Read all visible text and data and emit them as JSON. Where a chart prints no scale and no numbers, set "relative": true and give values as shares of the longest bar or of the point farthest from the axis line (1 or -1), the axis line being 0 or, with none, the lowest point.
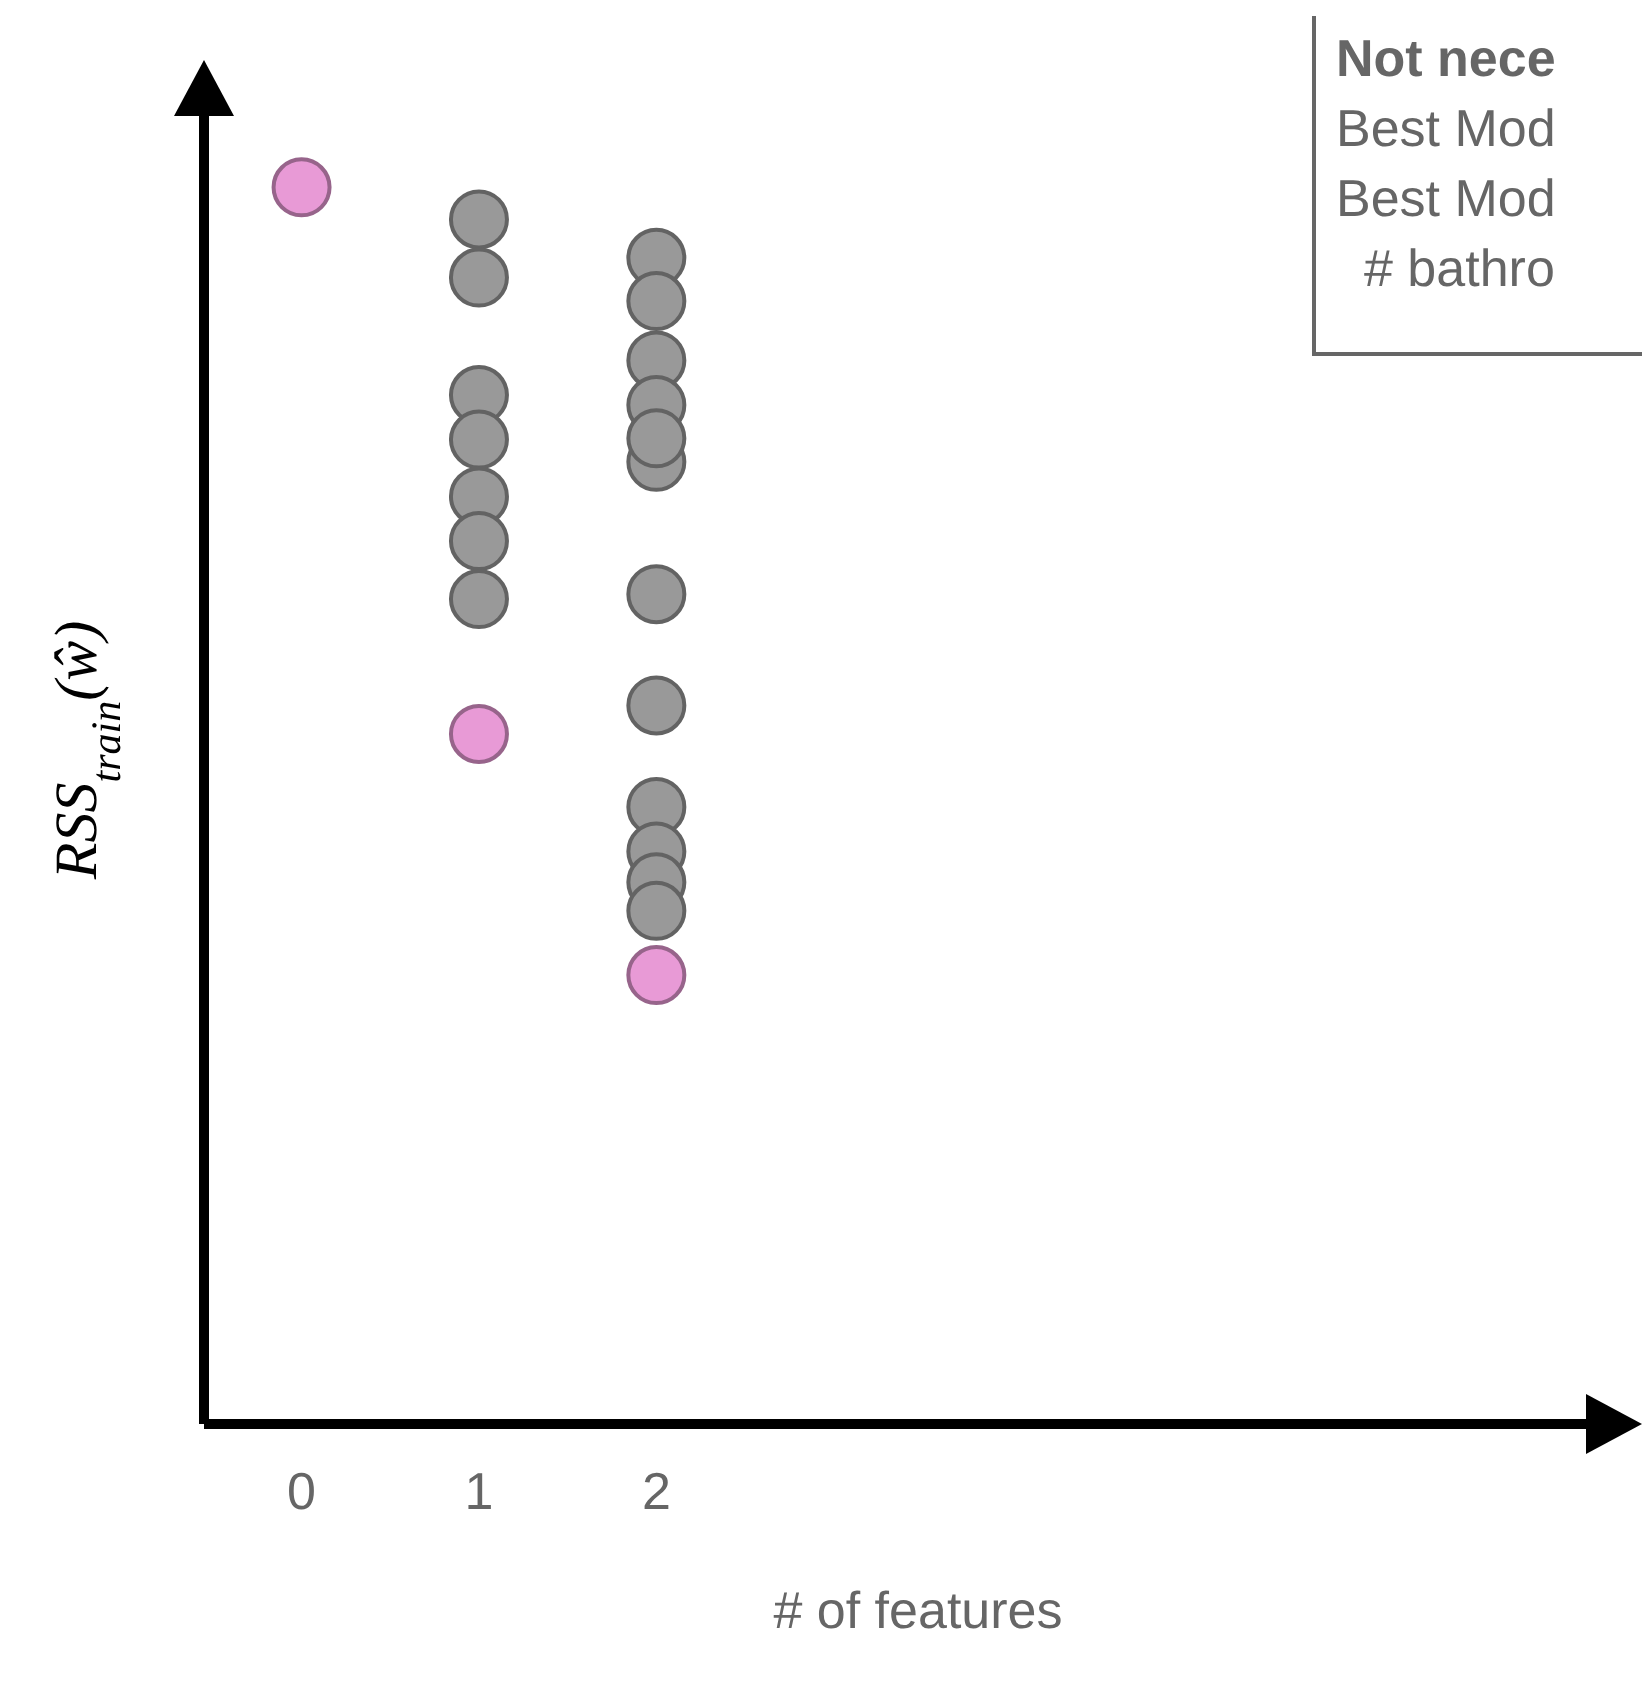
{
  "chart_data": {
    "type": "scatter",
    "relative": true,
    "xlabel": "# of features",
    "ylabel": "RSS$_{train}$(ŵ)",
    "xlim": [
      -0.55,
      7.5
    ],
    "xticks": [
      0,
      1,
      2
    ],
    "tick_labels": "x",
    "marker": "circle",
    "annotations": [
      "Not nece",
      "Best Mod",
      "Best Mod",
      "# bathro"
    ],
    "series": [
      {
        "color": "#999999",
        "x": [
          1,
          1,
          1,
          1,
          1,
          1,
          1,
          2,
          2,
          2,
          2,
          2,
          2,
          2,
          2,
          2,
          2,
          2,
          2
        ],
        "values": [
          0.974,
          0.927,
          0.832,
          0.796,
          0.75,
          0.714,
          0.667,
          0.943,
          0.908,
          0.86,
          0.824,
          0.778,
          0.797,
          0.671,
          0.581,
          0.499,
          0.463,
          0.438,
          0.415
        ]
      },
      {
        "color": "#e89ad6",
        "x": [
          0,
          1,
          2
        ],
        "values": [
          1,
          0.558,
          0.363
        ]
      }
    ]
  }
}
